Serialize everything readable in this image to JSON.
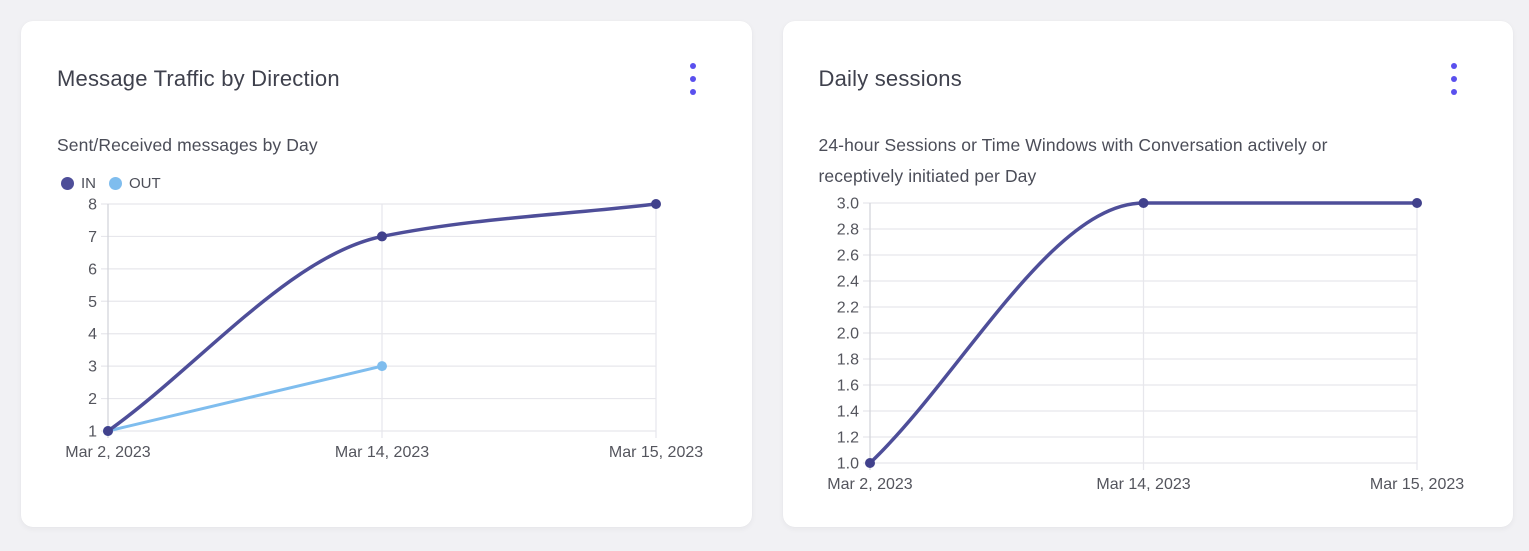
{
  "page": {
    "background": "#f1f1f4"
  },
  "colors": {
    "accent": "#5a50ee",
    "grid": "#e7e7ec",
    "axis_line": "#d4d5db",
    "axis_text": "#54555d",
    "card_background": "#ffffff"
  },
  "cards": [
    {
      "title": "Message Traffic by Direction",
      "menu_icon": "kebab-menu-icon",
      "subtitle_lines": [
        "Sent/Received messages by Day"
      ],
      "chart_index": 0
    },
    {
      "title": "Daily sessions",
      "menu_icon": "kebab-menu-icon",
      "subtitle_lines": [
        "24-hour Sessions or Time Windows with Conversation actively or",
        "receptively initiated per Day"
      ],
      "chart_index": 1
    }
  ],
  "chart_data": [
    {
      "type": "line",
      "title": "Message Traffic by Direction",
      "subtitle": "Sent/Received messages by Day",
      "x_categories": [
        "Mar 2, 2023",
        "Mar 14, 2023",
        "Mar 15, 2023"
      ],
      "series": [
        {
          "name": "IN",
          "color": "#4e4e99",
          "point_color": "#41418c",
          "line_width": 3.5,
          "values": [
            1,
            7,
            8
          ]
        },
        {
          "name": "OUT",
          "color": "#7fbdee",
          "point_color": "#7fbdee",
          "line_width": 3,
          "values": [
            1,
            3,
            null
          ]
        }
      ],
      "ylim": [
        1,
        8
      ],
      "y_ticks": [
        "1",
        "2",
        "3",
        "4",
        "5",
        "6",
        "7",
        "8"
      ],
      "grid": true,
      "smooth": true,
      "legend_position": "top-left"
    },
    {
      "type": "line",
      "title": "Daily sessions",
      "subtitle": "24-hour Sessions or Time Windows with Conversation actively or receptively initiated per Day",
      "x_categories": [
        "Mar 2, 2023",
        "Mar 14, 2023",
        "Mar 15, 2023"
      ],
      "series": [
        {
          "name": "Daily sessions",
          "color": "#4e4e99",
          "point_color": "#41418c",
          "line_width": 3.5,
          "values": [
            1.0,
            3.0,
            3.0
          ]
        }
      ],
      "ylim": [
        1.0,
        3.0
      ],
      "y_ticks": [
        "1.0",
        "1.2",
        "1.4",
        "1.6",
        "1.8",
        "2.0",
        "2.2",
        "2.4",
        "2.6",
        "2.8",
        "3.0"
      ],
      "grid": true,
      "smooth": true,
      "legend_position": "none"
    }
  ]
}
